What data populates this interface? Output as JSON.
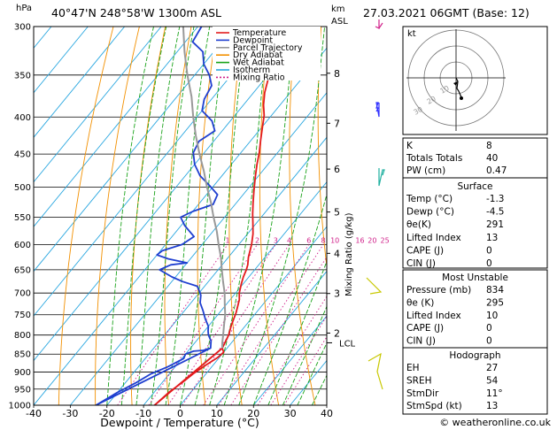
{
  "header": {
    "hpa_label": "hPa",
    "location": "40°47'N  248°58'W  1300m  ASL",
    "km_label": "km",
    "asl_label": "ASL",
    "date": "27.03.2021  06GMT  (Base: 12)"
  },
  "chart_data": {
    "type": "line",
    "title": "40°47'N  248°58'W  1300m  ASL",
    "xlabel": "Dewpoint / Temperature (°C)",
    "ylabel": "hPa",
    "y2label": "Mixing Ratio (g/kg)",
    "xlim": [
      -40,
      40
    ],
    "ylim": [
      1000,
      300
    ],
    "x_ticks": [
      "-40",
      "-30",
      "-20",
      "-10",
      "0",
      "10",
      "20",
      "30",
      "40"
    ],
    "p_ticks": [
      "300",
      "350",
      "400",
      "450",
      "500",
      "550",
      "600",
      "650",
      "700",
      "750",
      "800",
      "850",
      "900",
      "950",
      "1000"
    ],
    "km_ticks": [
      {
        "p": 348,
        "label": "8"
      },
      {
        "p": 408,
        "label": "7"
      },
      {
        "p": 472,
        "label": "6"
      },
      {
        "p": 541,
        "label": "5"
      },
      {
        "p": 617,
        "label": "4"
      },
      {
        "p": 701,
        "label": "3"
      },
      {
        "p": 795,
        "label": "2"
      }
    ],
    "lcl": {
      "p": 820,
      "label": "LCL"
    },
    "mixing_ratio_labels": [
      "1",
      "2",
      "3",
      "4",
      "6",
      "8",
      "10",
      "16",
      "20",
      "25"
    ],
    "mixing_ratio_values": [
      1,
      2,
      3,
      4,
      6,
      8,
      10,
      16,
      20,
      25
    ],
    "legend": [
      {
        "name": "Temperature",
        "color": "#e31a1c",
        "dash": ""
      },
      {
        "name": "Dewpoint",
        "color": "#1f3fd0",
        "dash": ""
      },
      {
        "name": "Parcel Trajectory",
        "color": "#999999",
        "dash": ""
      },
      {
        "name": "Dry Adiabat",
        "color": "#f29000",
        "dash": ""
      },
      {
        "name": "Wet Adiabat",
        "color": "#1aa31a",
        "dash": ""
      },
      {
        "name": "Isotherm",
        "color": "#2aa7e0",
        "dash": ""
      },
      {
        "name": "Mixing Ratio",
        "color": "#d0208a",
        "dash": "2,2"
      }
    ],
    "series": [
      {
        "name": "Temperature",
        "color": "#e31a1c",
        "points": [
          [
            -1.3,
            834
          ],
          [
            0,
            845
          ],
          [
            -0.5,
            860
          ],
          [
            -2,
            880
          ],
          [
            -3.5,
            905
          ],
          [
            -4.5,
            930
          ],
          [
            -6,
            960
          ],
          [
            -7,
            1000
          ],
          [
            -1.3,
            834
          ],
          [
            -2.5,
            800
          ],
          [
            -4,
            775
          ],
          [
            -5.5,
            745
          ],
          [
            -7.5,
            715
          ],
          [
            -9,
            700
          ],
          [
            -10.5,
            680
          ],
          [
            -11.5,
            665
          ],
          [
            -12.3,
            650
          ],
          [
            -13,
            640
          ],
          [
            -14.5,
            625
          ],
          [
            -16.5,
            600
          ],
          [
            -18.5,
            580
          ],
          [
            -21,
            560
          ],
          [
            -23,
            545
          ],
          [
            -25.5,
            525
          ],
          [
            -28,
            505
          ],
          [
            -30.5,
            485
          ],
          [
            -33,
            465
          ],
          [
            -35,
            448
          ],
          [
            -37.5,
            430
          ],
          [
            -40,
            412
          ],
          [
            -42,
            398
          ],
          [
            -44.5,
            385
          ],
          [
            -47,
            370
          ],
          [
            -49,
            355
          ],
          [
            -51.5,
            340
          ],
          [
            -54,
            322
          ],
          [
            -56,
            300
          ]
        ]
      },
      {
        "name": "Dewpoint",
        "color": "#1f3fd0",
        "points": [
          [
            -4.5,
            834
          ],
          [
            -6,
            840
          ],
          [
            -8.5,
            842
          ],
          [
            -10,
            850
          ],
          [
            -9.5,
            862
          ],
          [
            -12,
            885
          ],
          [
            -15,
            905
          ],
          [
            -17,
            930
          ],
          [
            -20,
            960
          ],
          [
            -23,
            1000
          ],
          [
            -4.5,
            834
          ],
          [
            -6,
            815
          ],
          [
            -8,
            800
          ],
          [
            -9,
            790
          ],
          [
            -10,
            778
          ],
          [
            -12.5,
            760
          ],
          [
            -15,
            740
          ],
          [
            -17.5,
            722
          ],
          [
            -19,
            705
          ],
          [
            -20,
            698
          ],
          [
            -22,
            685
          ],
          [
            -27,
            675
          ],
          [
            -31,
            665
          ],
          [
            -36,
            650
          ],
          [
            -34,
            640
          ],
          [
            -30,
            636
          ],
          [
            -36,
            628
          ],
          [
            -40,
            620
          ],
          [
            -39.5,
            612
          ],
          [
            -35.5,
            600
          ],
          [
            -34,
            585
          ],
          [
            -39,
            565
          ],
          [
            -42,
            550
          ],
          [
            -40,
            540
          ],
          [
            -36,
            528
          ],
          [
            -37,
            512
          ],
          [
            -41,
            498
          ],
          [
            -46,
            482
          ],
          [
            -50,
            465
          ],
          [
            -53,
            448
          ],
          [
            -54,
            432
          ],
          [
            -52,
            418
          ],
          [
            -55,
            405
          ],
          [
            -60,
            392
          ],
          [
            -62,
            378
          ],
          [
            -63,
            362
          ],
          [
            -66,
            350
          ],
          [
            -70,
            338
          ],
          [
            -73,
            325
          ],
          [
            -78,
            315
          ],
          [
            -79,
            300
          ]
        ]
      },
      {
        "name": "Parcel Trajectory",
        "color": "#999999",
        "points": [
          [
            -1.3,
            834
          ],
          [
            -2.5,
            820
          ],
          [
            -4,
            800
          ],
          [
            -6,
            775
          ],
          [
            -8,
            750
          ],
          [
            -10.5,
            725
          ],
          [
            -13,
            700
          ],
          [
            -16,
            675
          ],
          [
            -19,
            650
          ],
          [
            -22,
            625
          ],
          [
            -25.5,
            600
          ],
          [
            -29,
            575
          ],
          [
            -33,
            550
          ],
          [
            -37,
            525
          ],
          [
            -41.5,
            500
          ],
          [
            -46,
            475
          ],
          [
            -51,
            450
          ],
          [
            -56,
            425
          ],
          [
            -61,
            400
          ],
          [
            -66,
            375
          ],
          [
            -72,
            350
          ],
          [
            -78,
            325
          ],
          [
            -84,
            300
          ]
        ]
      }
    ]
  },
  "hodograph": {
    "unit_label": "kt",
    "ring_labels": [
      "10",
      "20",
      "30"
    ]
  },
  "indices": {
    "rows": [
      {
        "label": "K",
        "value": "8"
      },
      {
        "label": "Totals Totals",
        "value": "40"
      },
      {
        "label": "PW (cm)",
        "value": "0.47"
      }
    ]
  },
  "surface": {
    "title": "Surface",
    "rows": [
      {
        "label": "Temp (°C)",
        "value": "-1.3"
      },
      {
        "label": "Dewp (°C)",
        "value": "-4.5"
      },
      {
        "label": "θe(K)",
        "value": "291"
      },
      {
        "label": "Lifted Index",
        "value": "13"
      },
      {
        "label": "CAPE (J)",
        "value": "0"
      },
      {
        "label": "CIN (J)",
        "value": "0"
      }
    ]
  },
  "unstable": {
    "title": "Most Unstable",
    "rows": [
      {
        "label": "Pressure (mb)",
        "value": "834"
      },
      {
        "label": "θe (K)",
        "value": "295"
      },
      {
        "label": "Lifted Index",
        "value": "10"
      },
      {
        "label": "CAPE (J)",
        "value": "0"
      },
      {
        "label": "CIN (J)",
        "value": "0"
      }
    ]
  },
  "hodo_table": {
    "title": "Hodograph",
    "rows": [
      {
        "label": "EH",
        "value": "27"
      },
      {
        "label": "SREH",
        "value": "54"
      },
      {
        "label": "StmDir",
        "value": "11°"
      },
      {
        "label": "StmSpd (kt)",
        "value": "13"
      }
    ]
  },
  "footer": {
    "copyright": "© weatheronline.co.uk"
  },
  "colors": {
    "temperature": "#e31a1c",
    "dewpoint": "#1f3fd0",
    "parcel": "#999999",
    "dry_adiabat": "#f29000",
    "wet_adiabat": "#1aa31a",
    "isotherm": "#2aa7e0",
    "mixing_ratio": "#d0208a",
    "wind_barb": "#3030ff",
    "wind_low": "#c8c800"
  }
}
